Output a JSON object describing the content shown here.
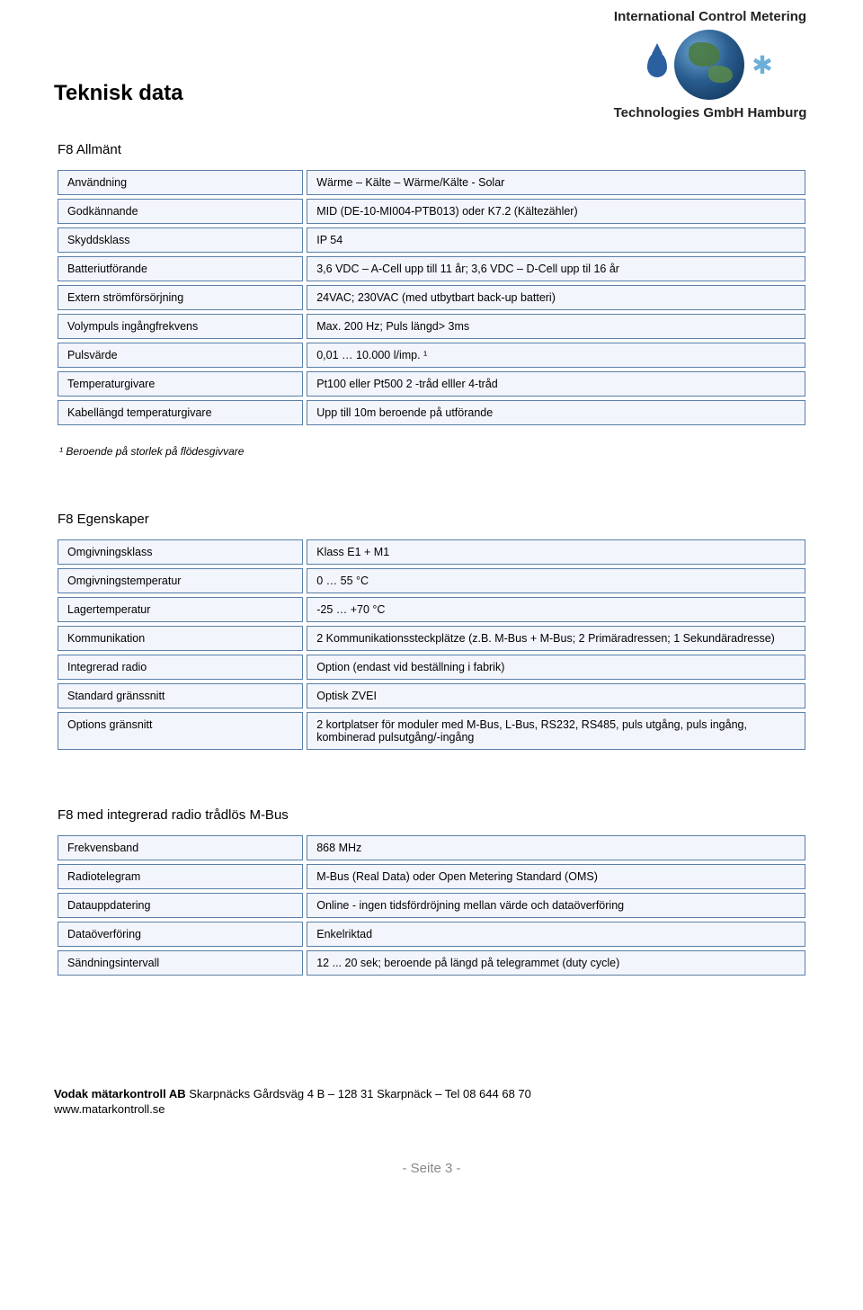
{
  "header": {
    "brand_line1": "International Control Metering",
    "brand_line2": "Technologies GmbH Hamburg"
  },
  "page_title": "Teknisk data",
  "table1": {
    "label": "F8 Allmänt",
    "rows": [
      {
        "k": "Användning",
        "v": "Wärme – Kälte – Wärme/Kälte - Solar"
      },
      {
        "k": "Godkännande",
        "v": "MID (DE-10-MI004-PTB013)  oder K7.2 (Kältezähler)"
      },
      {
        "k": "Skyddsklass",
        "v": "IP 54"
      },
      {
        "k": "Batteriutförande",
        "v": "3,6 VDC – A-Cell upp till 11 år; 3,6 VDC – D-Cell upp til 16 år"
      },
      {
        "k": "Extern strömförsörjning",
        "v": "24VAC; 230VAC (med utbytbart back-up batteri)"
      },
      {
        "k": "Volympuls ingångfrekvens",
        "v": "Max. 200 Hz; Puls längd> 3ms"
      },
      {
        "k": "Pulsvärde",
        "v": "0,01 … 10.000 l/imp. ¹"
      },
      {
        "k": "Temperaturgivare",
        "v": "Pt100 eller Pt500 2 -tråd elller 4-tråd"
      },
      {
        "k": "Kabellängd temperaturgivare",
        "v": "Upp till 10m beroende på utförande"
      }
    ]
  },
  "footnote": "¹ Beroende på storlek på flödesgivvare",
  "table2": {
    "label": "F8 Egenskaper",
    "rows": [
      {
        "k": "Omgivningsklass",
        "v": "Klass E1 + M1"
      },
      {
        "k": "Omgivningstemperatur",
        "v": "0 … 55 °C"
      },
      {
        "k": "Lagertemperatur",
        "v": "-25 … +70 °C"
      },
      {
        "k": "Kommunikation",
        "v": "2 Kommunikationssteckplätze (z.B. M-Bus + M-Bus; 2 Primäradressen; 1 Sekundäradresse)"
      },
      {
        "k": "Integrerad  radio",
        "v": "Option (endast vid  beställning i fabrik)"
      },
      {
        "k": "Standard gränssnitt",
        "v": "Optisk ZVEI"
      },
      {
        "k": "Options gränsnitt",
        "v": "2 kortplatser för moduler med M-Bus, L-Bus, RS232, RS485, puls utgång, puls ingång, kombinerad  pulsutgång/-ingång"
      }
    ]
  },
  "table3": {
    "label": "F8 med integrerad radio trådlös M-Bus",
    "rows": [
      {
        "k": "Frekvensband",
        "v": "868 MHz"
      },
      {
        "k": "Radiotelegram",
        "v": "M-Bus (Real Data) oder Open Metering Standard (OMS)"
      },
      {
        "k": "Datauppdatering",
        "v": "Online - ingen tidsfördröjning mellan värde och dataöverföring"
      },
      {
        "k": "Dataöverföring",
        "v": "Enkelriktad"
      },
      {
        "k": "Sändningsintervall",
        "v": "12  ... 20 sek; beroende på längd på telegrammet  (duty cycle)"
      }
    ]
  },
  "footer": {
    "company_bold": "Vodak mätarkontroll AB",
    "company_rest": " Skarpnäcks Gårdsväg 4 B – 128 31 Skarpnäck – Tel 08 644 68 70",
    "www": "www.matarkontroll.se"
  },
  "page_number": "- Seite 3 -",
  "style": {
    "cell_border": "#5a7fa8",
    "cell_bg": "#f2f5fb",
    "body_font_size": 12.5
  }
}
